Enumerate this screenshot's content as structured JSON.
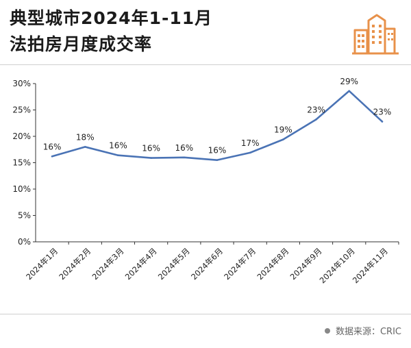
{
  "header": {
    "title_line1": "典型城市2024年1-11月",
    "title_line2": "法拍房月度成交率"
  },
  "logo": {
    "icon": "city-buildings-icon",
    "color": "#e8914a"
  },
  "footer": {
    "source_text": "数据来源：CRIC"
  },
  "colors": {
    "line": "#4a73b5",
    "axis": "#333333",
    "grid_none": true
  },
  "chart_data": {
    "type": "line",
    "title": "典型城市2024年1-11月法拍房月度成交率",
    "categories": [
      "2024年1月",
      "2024年2月",
      "2024年3月",
      "2024年4月",
      "2024年5月",
      "2024年6月",
      "2024年7月",
      "2024年8月",
      "2024年9月",
      "2024年10月",
      "2024年11月"
    ],
    "series": [
      {
        "values": [
          16.2,
          18.0,
          16.4,
          15.9,
          16.0,
          15.5,
          16.9,
          19.4,
          23.2,
          28.6,
          22.8
        ],
        "labels": [
          "16%",
          "18%",
          "16%",
          "16%",
          "16%",
          "16%",
          "17%",
          "19%",
          "23%",
          "29%",
          "23%"
        ]
      }
    ],
    "ylim": [
      0,
      30
    ],
    "yticks": [
      "0%",
      "5%",
      "10%",
      "15%",
      "20%",
      "25%",
      "30%"
    ],
    "grid": false,
    "legend": "none"
  }
}
